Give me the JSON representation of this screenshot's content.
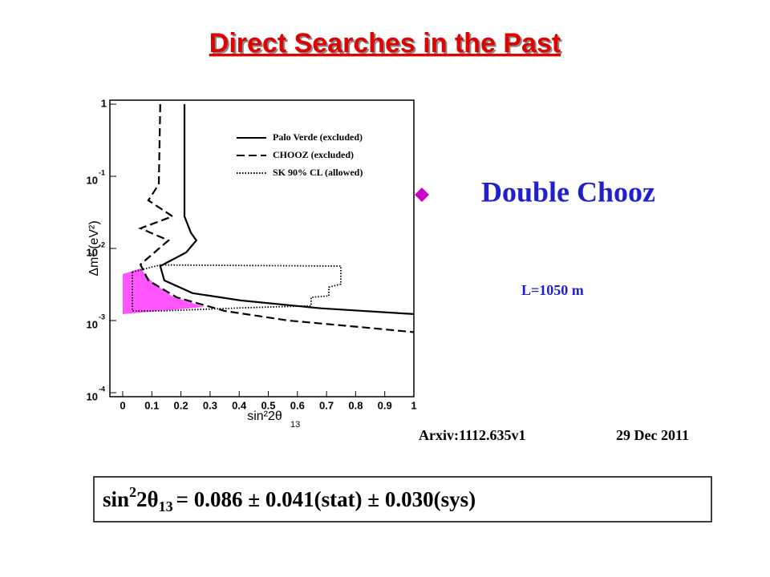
{
  "title": "Direct Searches in the Past",
  "bullet": "Double Chooz",
  "baseline": "L=1050 m",
  "reference": {
    "arxiv": "Arxiv:1112.635v1",
    "date": "29 Dec 2011"
  },
  "result": {
    "func": "sin",
    "exp": "2",
    "arg": "2θ",
    "sub": "13",
    "rhs": "= 0.086 ± 0.041(stat) ± 0.030(sys)"
  },
  "chart_data": {
    "type": "line",
    "x_label": "sin²2θ",
    "x_label_sub": "13",
    "y_label": "Δm² (eV²)",
    "ylog": true,
    "xlim": [
      0,
      1
    ],
    "xticks": [
      0,
      0.1,
      0.2,
      0.3,
      0.4,
      0.5,
      0.6,
      0.7,
      0.8,
      0.9,
      1
    ],
    "ylim": [
      0.0001,
      1
    ],
    "yticks": [
      {
        "value": 0.0001,
        "label": "10",
        "exponent": "-4"
      },
      {
        "value": 0.001,
        "label": "10",
        "exponent": "-3"
      },
      {
        "value": 0.01,
        "label": "10",
        "exponent": "-2"
      },
      {
        "value": 0.1,
        "label": "10",
        "exponent": "-1"
      },
      1
    ],
    "series": [
      {
        "name": "Palo Verde (excluded)",
        "color": "#000000",
        "dash": "solid",
        "x": [
          0.212,
          0.212,
          0.234,
          0.253,
          0.218,
          0.129,
          0.143,
          0.24,
          0.405,
          0.68,
          1.0
        ],
        "values": [
          1,
          0.0278,
          0.0166,
          0.0129,
          0.0088,
          0.0057,
          0.0036,
          0.0024,
          0.0019,
          0.00148,
          0.00123
        ]
      },
      {
        "name": "CHOOZ (excluded)",
        "color": "#000000",
        "dash": "dashed",
        "x": [
          0.129,
          0.124,
          0.088,
          0.171,
          0.061,
          0.157,
          0.061,
          0.088,
          0.185,
          0.35,
          0.57,
          0.818,
          1.0
        ],
        "values": [
          1,
          0.0774,
          0.0464,
          0.0278,
          0.019,
          0.0129,
          0.006,
          0.0036,
          0.0021,
          0.00136,
          0.001,
          0.00081,
          0.00069
        ]
      },
      {
        "name": "SK 90% CL (allowed)",
        "color": "#000000",
        "dash": "dotted",
        "x": [
          0.033,
          0.129,
          0.749,
          0.749,
          0.708,
          0.708,
          0.647,
          0.647,
          0.405,
          0.129,
          0.033
        ],
        "values": [
          0.0047,
          0.0059,
          0.0057,
          0.0032,
          0.0029,
          0.0022,
          0.0021,
          0.0016,
          0.0015,
          0.00136,
          0.00136
        ]
      }
    ]
  }
}
